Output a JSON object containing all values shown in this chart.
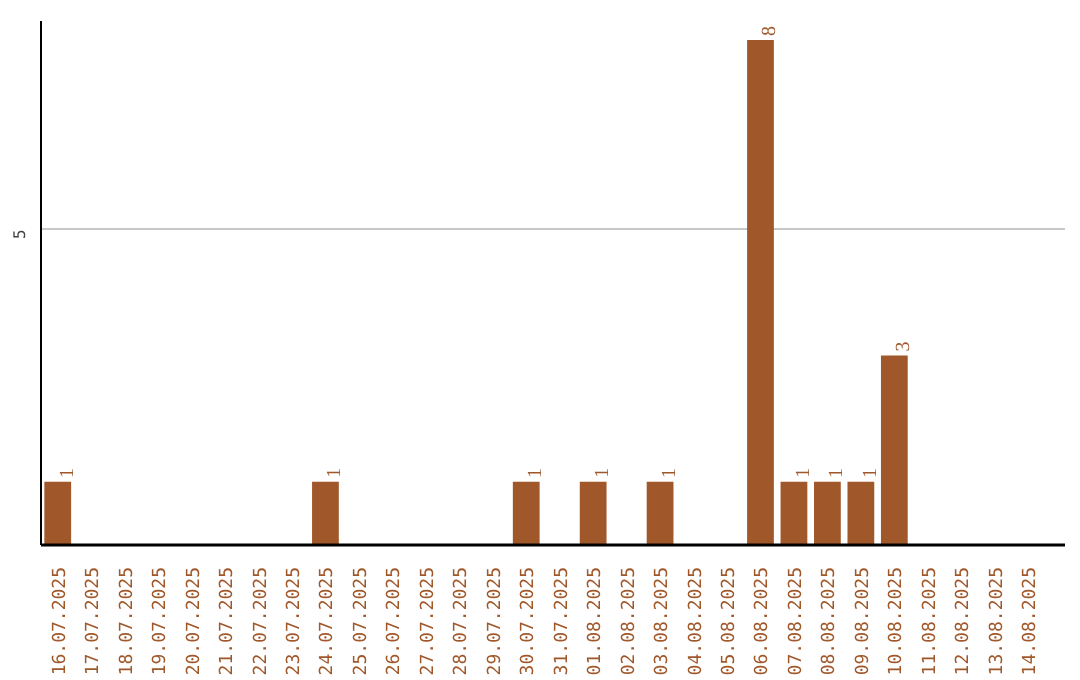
{
  "chart_data": {
    "type": "bar",
    "categories": [
      "16.07.2025",
      "17.07.2025",
      "18.07.2025",
      "19.07.2025",
      "20.07.2025",
      "21.07.2025",
      "22.07.2025",
      "23.07.2025",
      "24.07.2025",
      "25.07.2025",
      "26.07.2025",
      "27.07.2025",
      "28.07.2025",
      "29.07.2025",
      "30.07.2025",
      "31.07.2025",
      "01.08.2025",
      "02.08.2025",
      "03.08.2025",
      "04.08.2025",
      "05.08.2025",
      "06.08.2025",
      "07.08.2025",
      "08.08.2025",
      "09.08.2025",
      "10.08.2025",
      "11.08.2025",
      "12.08.2025",
      "13.08.2025",
      "14.08.2025"
    ],
    "values": [
      1,
      0,
      0,
      0,
      0,
      0,
      0,
      0,
      1,
      0,
      0,
      0,
      0,
      0,
      1,
      0,
      1,
      0,
      1,
      0,
      0,
      8,
      1,
      1,
      1,
      3,
      0,
      0,
      0,
      0
    ],
    "value_labels": [
      "1",
      null,
      null,
      null,
      null,
      null,
      null,
      null,
      "1",
      null,
      null,
      null,
      null,
      null,
      "1",
      null,
      "1",
      null,
      "1",
      null,
      null,
      "8",
      "1",
      "1",
      "1",
      "3",
      null,
      null,
      null,
      null
    ],
    "color": "#a0582a",
    "ylim": [
      0,
      8.3
    ],
    "yticks": [
      5
    ],
    "grid": "y"
  }
}
